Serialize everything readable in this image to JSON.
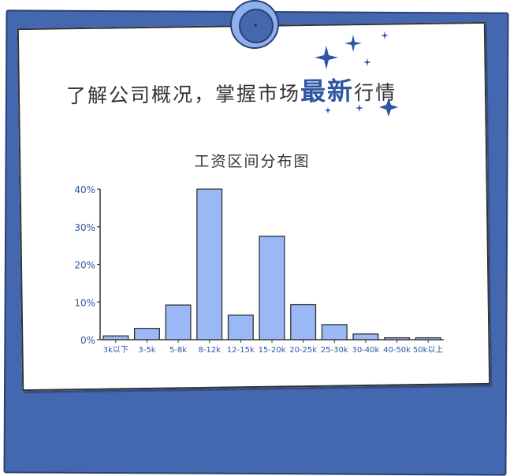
{
  "headline": {
    "prefix": "了解公司概况，掌握市场",
    "emphasis": "最新",
    "suffix": "行情"
  },
  "colors": {
    "frame": "#4468b0",
    "bar_fill": "#9ab8f5",
    "accent_text": "#2f56a3",
    "axis_text": "#2f56a3"
  },
  "chart_data": {
    "type": "bar",
    "title": "工资区间分布图",
    "xlabel": "",
    "ylabel": "",
    "categories": [
      "3k以下",
      "3-5k",
      "5-8k",
      "8-12k",
      "12-15k",
      "15-20k",
      "20-25k",
      "25-30k",
      "30-40k",
      "40-50k",
      "50k以上"
    ],
    "values": [
      1,
      3,
      9.2,
      40,
      6.5,
      27.5,
      9.3,
      4,
      1.5,
      0.5,
      0.5
    ],
    "y_ticks": [
      "0%",
      "10%",
      "20%",
      "30%",
      "40%"
    ],
    "ylim": [
      0,
      40
    ],
    "grid": false,
    "legend": "none"
  }
}
